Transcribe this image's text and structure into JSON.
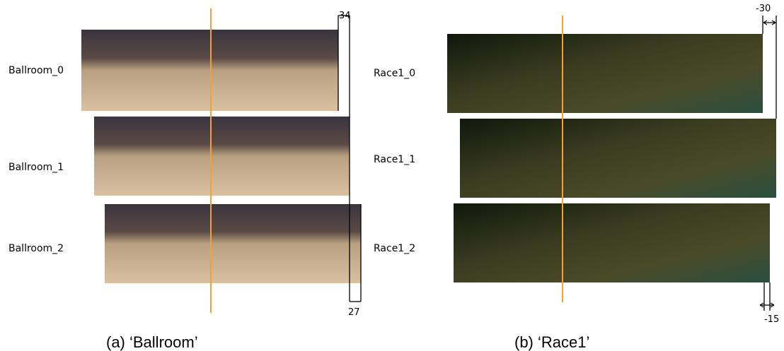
{
  "panels": [
    {
      "caption": "(a) ‘Ballroom’",
      "rows": [
        "Ballroom_0",
        "Ballroom_1",
        "Ballroom_2"
      ],
      "top_offset": 34,
      "bottom_offset": 27
    },
    {
      "caption": "(b) ‘Race1’",
      "rows": [
        "Race1_0",
        "Race1_1",
        "Race1_2"
      ],
      "top_offset": -30,
      "bottom_offset": -15
    }
  ]
}
